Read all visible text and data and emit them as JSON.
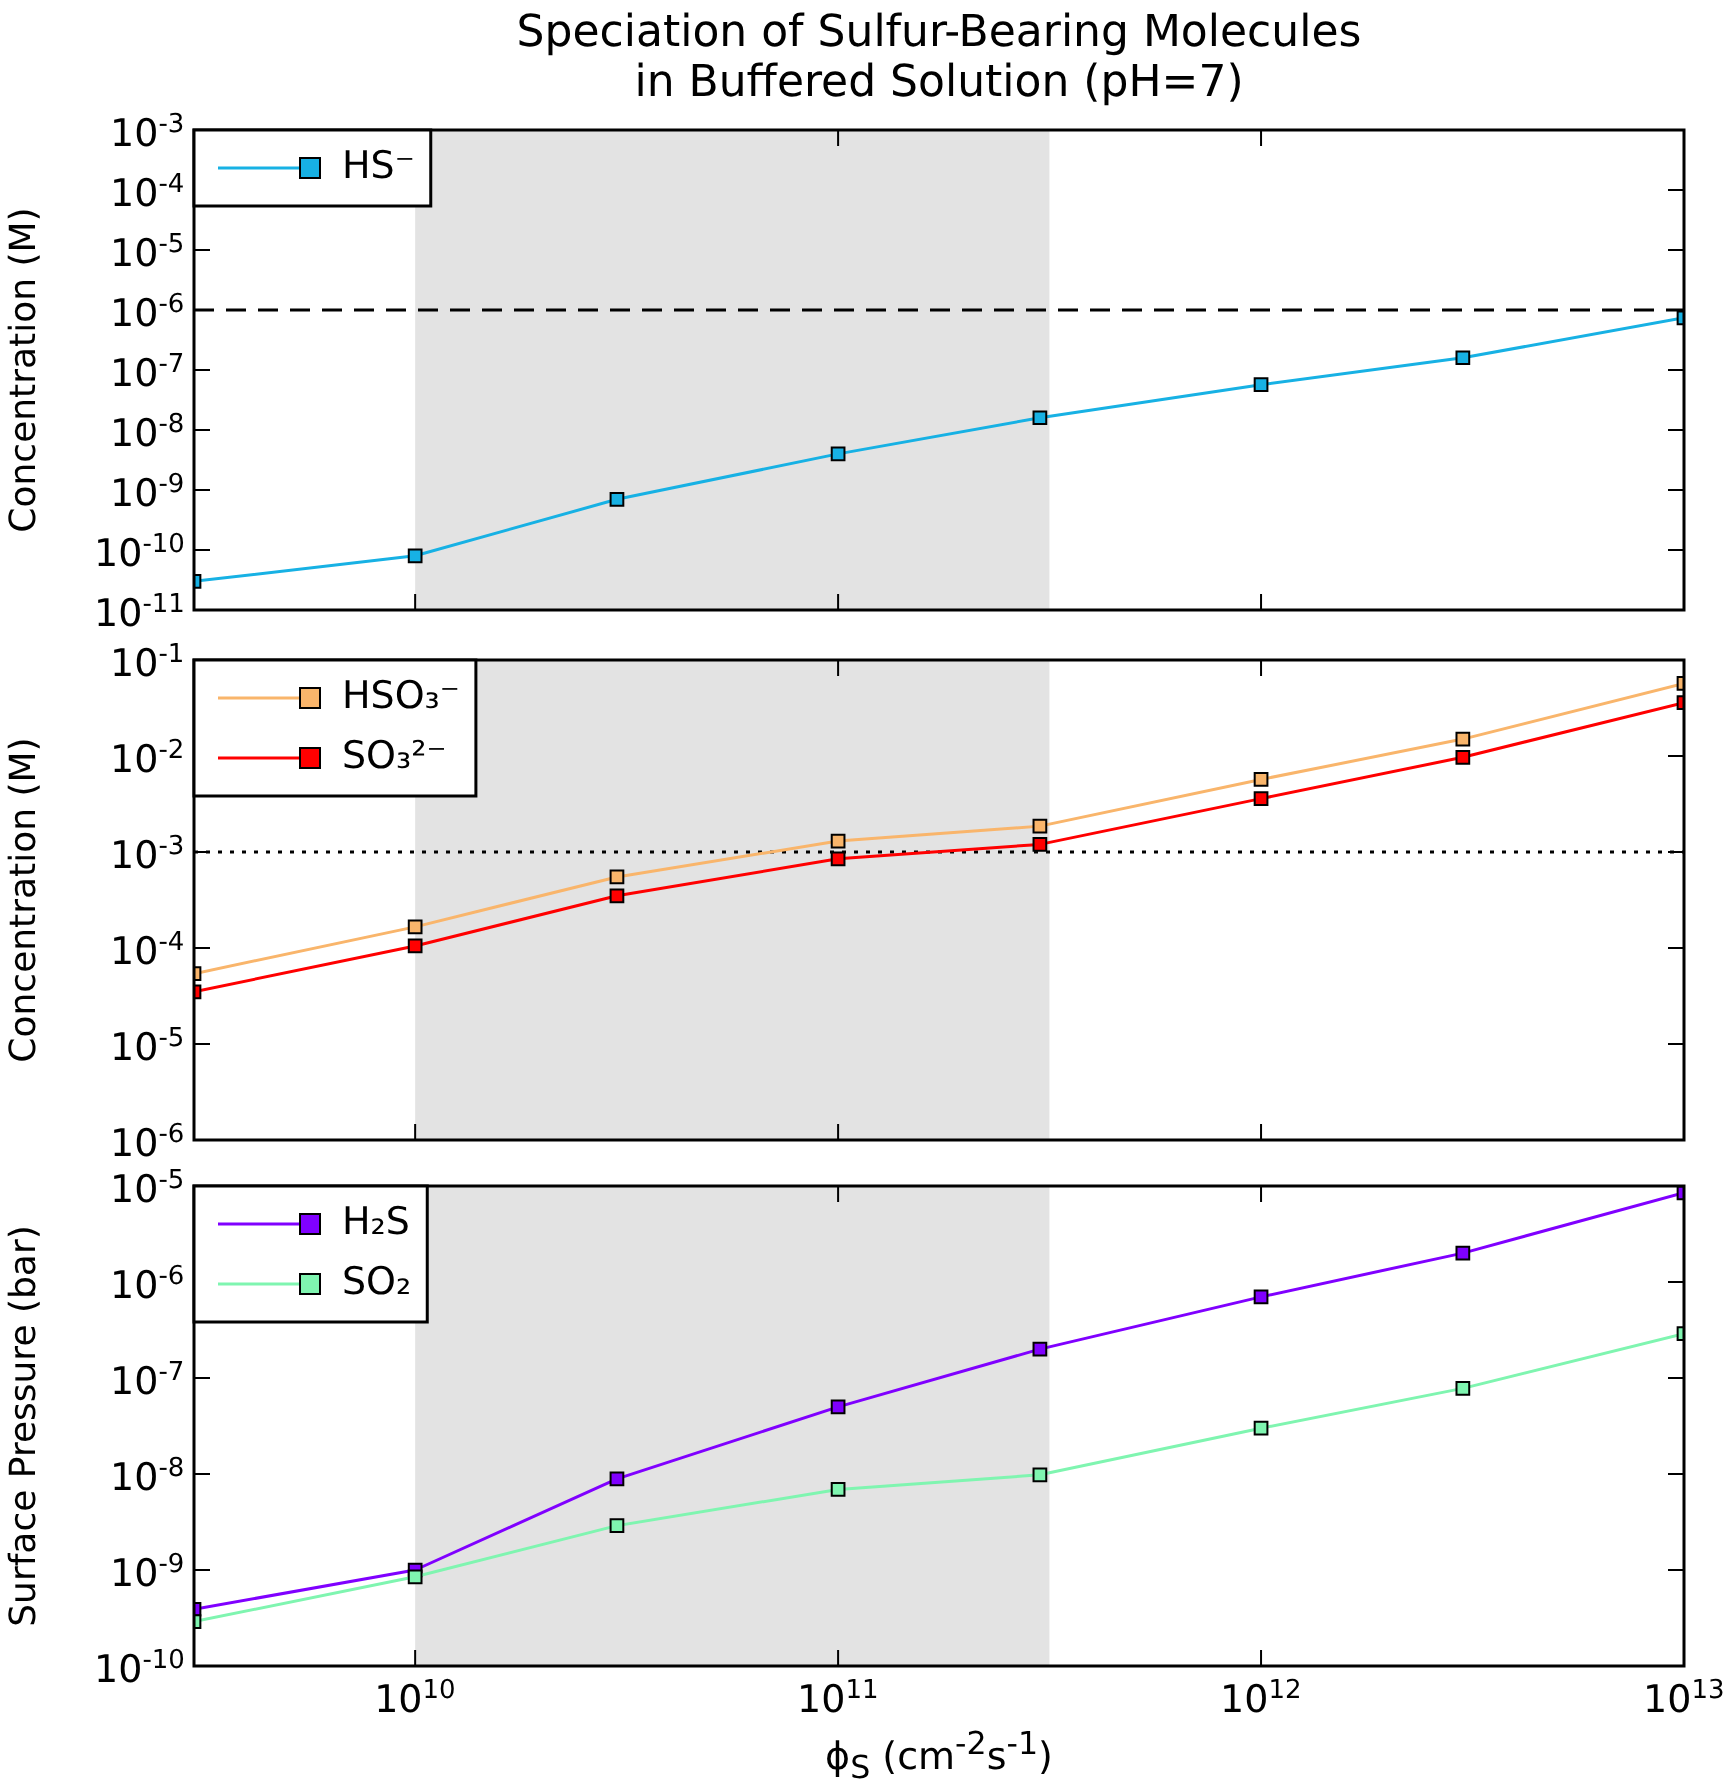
{
  "chart_data": [
    {
      "type": "line",
      "title": "Speciation of Sulfur-Bearing Molecules\nin Buffered Solution (pH=7)",
      "ylabel": "Concentration (M)",
      "log": "xy",
      "legend": "top left",
      "marker": "square",
      "tick_labels": "y",
      "x": [
        3000000000.0,
        10000000000.0,
        30000000000.0,
        100000000000.0,
        300000000000.0,
        1000000000000.0,
        3000000000000.0,
        10000000000000.0
      ],
      "series": [
        {
          "name": "HS⁻",
          "color": "#17b1e4",
          "values": [
            3e-11,
            8e-11,
            7e-10,
            4e-09,
            1.6e-08,
            5.7e-08,
            1.6e-07,
            7.4e-07
          ]
        }
      ],
      "xlim": [
        3000000000.0,
        10000000000000.0
      ],
      "xticks": [
        10000000000.0,
        100000000000.0,
        1000000000000.0,
        10000000000000.0
      ],
      "ylim": [
        1e-11,
        0.001
      ],
      "yticks": [
        {
          "value": 1e-11,
          "label": "10$^{-11}$"
        },
        {
          "value": 1e-10,
          "label": "10$^{-10}$"
        },
        {
          "value": 1e-09,
          "label": "10$^{-9}$"
        },
        {
          "value": 1e-08,
          "label": "10$^{-8}$"
        },
        {
          "value": 1e-07,
          "label": "10$^{-7}$"
        },
        {
          "value": 1e-06,
          "label": "10$^{-6}$"
        },
        {
          "value": 1e-05,
          "label": "10$^{-5}$"
        },
        {
          "value": 0.0001,
          "label": "10$^{-4}$"
        },
        {
          "value": 0.001,
          "label": "10$^{-3}$"
        }
      ],
      "bands": [
        {
          "axis": "x",
          "from": 10000000000.0,
          "to": 316000000000.0,
          "color": "#e3e3e3"
        }
      ],
      "ref_lines": [
        {
          "axis": "y",
          "value": 1e-06,
          "color": "#000000",
          "line_style": "dashed"
        }
      ]
    },
    {
      "type": "line",
      "ylabel": "Concentration (M)",
      "log": "xy",
      "legend": "top left",
      "marker": "square",
      "tick_labels": "y",
      "x": [
        3000000000.0,
        10000000000.0,
        30000000000.0,
        100000000000.0,
        300000000000.0,
        1000000000000.0,
        3000000000000.0,
        10000000000000.0
      ],
      "series": [
        {
          "name": "HSO₃⁻",
          "color": "#f9b56b",
          "values": [
            5.4e-05,
            0.000166,
            0.00055,
            0.0013,
            0.00186,
            0.0057,
            0.015,
            0.057
          ]
        },
        {
          "name": "SO₃²⁻",
          "color": "#ff0000",
          "values": [
            3.5e-05,
            0.000105,
            0.00035,
            0.00085,
            0.0012,
            0.0036,
            0.0097,
            0.036
          ]
        }
      ],
      "xlim": [
        3000000000.0,
        10000000000000.0
      ],
      "xticks": [
        10000000000.0,
        100000000000.0,
        1000000000000.0,
        10000000000000.0
      ],
      "ylim": [
        1e-06,
        0.1
      ],
      "yticks": [
        {
          "value": 1e-06,
          "label": "10$^{-6}$"
        },
        {
          "value": 1e-05,
          "label": "10$^{-5}$"
        },
        {
          "value": 0.0001,
          "label": "10$^{-4}$"
        },
        {
          "value": 0.001,
          "label": "10$^{-3}$"
        },
        {
          "value": 0.01,
          "label": "10$^{-2}$"
        },
        {
          "value": 0.1,
          "label": "10$^{-1}$"
        }
      ],
      "bands": [
        {
          "axis": "x",
          "from": 10000000000.0,
          "to": 316000000000.0,
          "color": "#e3e3e3"
        }
      ],
      "ref_lines": [
        {
          "axis": "y",
          "value": 0.001,
          "color": "#000000",
          "line_style": "dotted"
        }
      ]
    },
    {
      "type": "line",
      "xlabel": "ϕ$_{S}$ (cm$^{-2}$s$^{-1}$)",
      "ylabel": "Surface Pressure (bar)",
      "log": "xy",
      "legend": "top left",
      "marker": "square",
      "x": [
        3000000000.0,
        10000000000.0,
        30000000000.0,
        100000000000.0,
        300000000000.0,
        1000000000000.0,
        3000000000000.0,
        10000000000000.0
      ],
      "series": [
        {
          "name": "H₂S",
          "color": "#8000ff",
          "values": [
            3.9e-10,
            1e-09,
            8.9e-09,
            5e-08,
            2e-07,
            7e-07,
            2e-06,
            8.5e-06
          ]
        },
        {
          "name": "SO₂",
          "color": "#7ff5b0",
          "values": [
            2.9e-10,
            8.5e-10,
            2.9e-09,
            6.9e-09,
            9.8e-09,
            3e-08,
            7.8e-08,
            2.9e-07
          ]
        }
      ],
      "xlim": [
        3000000000.0,
        10000000000000.0
      ],
      "xticks": [
        {
          "value": 10000000000.0,
          "label": "10$^{10}$"
        },
        {
          "value": 100000000000.0,
          "label": "10$^{11}$"
        },
        {
          "value": 1000000000000.0,
          "label": "10$^{12}$"
        },
        {
          "value": 10000000000000.0,
          "label": "10$^{13}$"
        }
      ],
      "ylim": [
        1e-10,
        1e-05
      ],
      "yticks": [
        {
          "value": 1e-10,
          "label": "10$^{-10}$"
        },
        {
          "value": 1e-09,
          "label": "10$^{-9}$"
        },
        {
          "value": 1e-08,
          "label": "10$^{-8}$"
        },
        {
          "value": 1e-07,
          "label": "10$^{-7}$"
        },
        {
          "value": 1e-06,
          "label": "10$^{-6}$"
        },
        {
          "value": 1e-05,
          "label": "10$^{-5}$"
        }
      ],
      "bands": [
        {
          "axis": "x",
          "from": 10000000000.0,
          "to": 316000000000.0,
          "color": "#e3e3e3"
        }
      ]
    }
  ]
}
